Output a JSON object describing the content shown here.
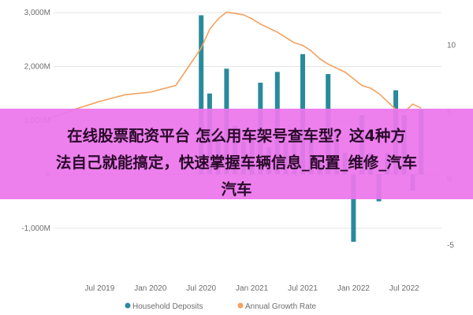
{
  "chart_data": {
    "type": "bar",
    "x_axis": {
      "ticks": [
        "Jul 2019",
        "Jan 2020",
        "Jul 2020",
        "Jan 2021",
        "Jul 2021",
        "Jan 2022",
        "Jul 2022"
      ]
    },
    "y_axis_left": {
      "ticks": [
        "-1,000M",
        "0",
        "1,000M",
        "2,000M",
        "3,000M"
      ],
      "range": [
        -1250,
        3000
      ],
      "unit": "M"
    },
    "y_axis_right": {
      "ticks": [
        "-5",
        "0",
        "5",
        "10"
      ],
      "range": [
        -6.5,
        14
      ]
    },
    "series": [
      {
        "name": "Household Deposits",
        "type": "bar",
        "color": "#2a8a9c",
        "x": [
          "2020-07",
          "2020-08",
          "2020-09",
          "2020-10",
          "2020-11",
          "2020-12",
          "2021-01",
          "2021-02",
          "2021-03",
          "2021-04",
          "2021-05",
          "2021-06",
          "2021-07",
          "2021-08",
          "2021-09",
          "2021-10",
          "2021-11",
          "2021-12",
          "2022-01",
          "2022-02",
          "2022-03",
          "2022-04",
          "2022-05",
          "2022-06",
          "2022-07",
          "2022-08",
          "2022-09"
        ],
        "values": [
          2950,
          1500,
          700,
          1960,
          900,
          600,
          650,
          1700,
          500,
          1900,
          600,
          750,
          2230,
          700,
          350,
          1860,
          850,
          400,
          -1250,
          1100,
          400,
          -500,
          400,
          1560,
          1100,
          -300,
          1200
        ]
      },
      {
        "name": "Annual Growth Rate",
        "type": "line",
        "color": "#f5a15f",
        "axis": "right",
        "x": [
          "2019-01",
          "2019-04",
          "2019-07",
          "2019-10",
          "2020-01",
          "2020-04",
          "2020-07",
          "2020-08",
          "2020-09",
          "2020-10",
          "2020-11",
          "2020-12",
          "2021-01",
          "2021-02",
          "2021-03",
          "2021-04",
          "2021-05",
          "2021-06",
          "2021-07",
          "2021-08",
          "2021-09",
          "2021-10",
          "2021-11",
          "2021-12",
          "2022-01",
          "2022-02",
          "2022-03",
          "2022-04",
          "2022-05",
          "2022-06",
          "2022-07",
          "2022-08",
          "2022-09"
        ],
        "values": [
          4.5,
          5.2,
          5.8,
          6.3,
          6.5,
          7.0,
          9.8,
          11.2,
          12.0,
          12.5,
          12.4,
          12.3,
          12.0,
          11.6,
          11.3,
          11.0,
          10.6,
          10.2,
          10.0,
          9.6,
          9.0,
          8.6,
          8.3,
          8.0,
          7.5,
          7.0,
          6.8,
          6.4,
          5.8,
          5.2,
          5.0,
          5.6,
          5.3
        ]
      }
    ],
    "legend": {
      "position": "bottom",
      "items": [
        {
          "label": "Household Deposits",
          "color": "#2a8a9c"
        },
        {
          "label": "Annual Growth Rate",
          "color": "#f5a15f"
        }
      ]
    },
    "grid": true
  },
  "overlay": {
    "line1": "在线股票配资平台 怎么用车架号查车型？这4种方",
    "line2": "法自己就能搞定，快速掌握车辆信息_配置_维修_汽车",
    "line3": "汽车"
  }
}
